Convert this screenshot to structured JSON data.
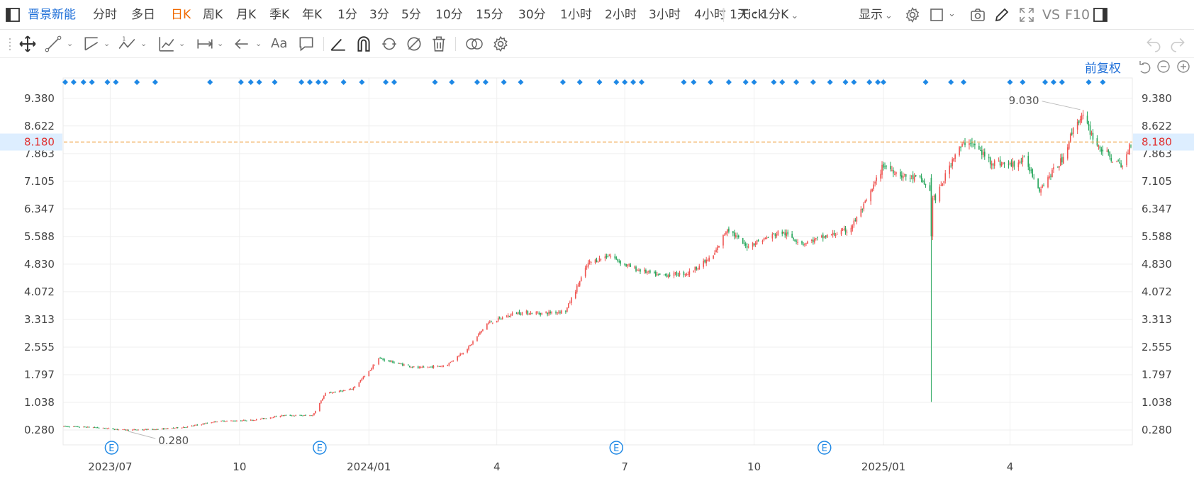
{
  "topbar": {
    "stock_name": "晋景新能",
    "periods": [
      "分时",
      "多日",
      "日K",
      "周K",
      "月K",
      "季K",
      "年K",
      "1分",
      "3分",
      "5分",
      "10分",
      "15分",
      "30分",
      "1小时",
      "2小时",
      "3小时",
      "4小时",
      "Tick"
    ],
    "active_period": "日K",
    "multi_period_label": "1天 : 1分K",
    "display_label": "显示",
    "vs_label": "VS",
    "f10_label": "F10"
  },
  "drawbar": {
    "text_tool_label": "Aa"
  },
  "chart_data": {
    "type": "candlestick",
    "title": "",
    "y_ticks": [
      0.28,
      1.038,
      1.797,
      2.555,
      3.313,
      4.072,
      4.83,
      5.588,
      6.347,
      7.105,
      7.863,
      8.622,
      9.38
    ],
    "y_tick_labels": [
      "0.280",
      "1.038",
      "1.797",
      "2.555",
      "3.313",
      "4.072",
      "4.830",
      "5.588",
      "6.347",
      "7.105",
      "7.863",
      "8.622",
      "9.380"
    ],
    "ylim": [
      -0.05,
      9.72
    ],
    "x_labels": [
      "2023/07",
      "10",
      "2024/01",
      "4",
      "7",
      "10",
      "2025/01",
      "4"
    ],
    "x_label_dates": [
      "2023-07-01",
      "2023-10-01",
      "2024-01-01",
      "2024-04-01",
      "2024-07-01",
      "2024-10-01",
      "2025-01-01",
      "2025-04-01"
    ],
    "date_range": [
      "2023-05-29",
      "2025-06-26"
    ],
    "last_price": 8.18,
    "last_price_label": "8.180",
    "adjust_label": "前复权",
    "max_annotation": {
      "value": 9.03,
      "label": "9.030",
      "date": "2025-05-23"
    },
    "min_annotation": {
      "value": 0.28,
      "label": "0.280",
      "date": "2023-07-12"
    },
    "event_markers": {
      "label": "E",
      "dates": [
        "2023-07-02",
        "2023-11-27",
        "2024-06-25",
        "2024-11-20"
      ]
    },
    "signal_dates": [
      "2023-05-30",
      "2023-06-05",
      "2023-06-12",
      "2023-06-18",
      "2023-06-29",
      "2023-07-05",
      "2023-07-20",
      "2023-08-02",
      "2023-09-10",
      "2023-10-02",
      "2023-10-09",
      "2023-10-15",
      "2023-10-26",
      "2023-11-14",
      "2023-11-20",
      "2023-11-26",
      "2023-12-01",
      "2023-12-14",
      "2023-12-27",
      "2024-01-13",
      "2024-01-19",
      "2024-02-17",
      "2024-02-29",
      "2024-03-18",
      "2024-03-24",
      "2024-04-06",
      "2024-04-18",
      "2024-05-18",
      "2024-05-30",
      "2024-06-13",
      "2024-06-25",
      "2024-07-01",
      "2024-07-07",
      "2024-07-13",
      "2024-08-12",
      "2024-08-19",
      "2024-08-31",
      "2024-09-13",
      "2024-09-25",
      "2024-10-01",
      "2024-10-15",
      "2024-10-21",
      "2024-10-31",
      "2024-11-12",
      "2024-11-24",
      "2024-12-05",
      "2024-12-11",
      "2024-12-22",
      "2024-12-28",
      "2025-01-01",
      "2025-01-31",
      "2025-02-18",
      "2025-02-27",
      "2025-04-01",
      "2025-04-10",
      "2025-04-26",
      "2025-05-02",
      "2025-05-08",
      "2025-05-27",
      "2025-06-06"
    ],
    "anchors": [
      [
        "2023-05-29",
        0.38
      ],
      [
        "2023-06-20",
        0.35
      ],
      [
        "2023-07-12",
        0.28
      ],
      [
        "2023-08-05",
        0.3
      ],
      [
        "2023-08-25",
        0.37
      ],
      [
        "2023-09-15",
        0.52
      ],
      [
        "2023-10-10",
        0.55
      ],
      [
        "2023-11-01",
        0.68
      ],
      [
        "2023-11-22",
        0.68
      ],
      [
        "2023-12-01",
        1.28
      ],
      [
        "2023-12-20",
        1.4
      ],
      [
        "2024-01-01",
        1.88
      ],
      [
        "2024-01-08",
        2.25
      ],
      [
        "2024-01-20",
        2.12
      ],
      [
        "2024-02-05",
        1.98
      ],
      [
        "2024-02-25",
        2.05
      ],
      [
        "2024-03-12",
        2.55
      ],
      [
        "2024-03-25",
        3.2
      ],
      [
        "2024-04-15",
        3.5
      ],
      [
        "2024-05-05",
        3.48
      ],
      [
        "2024-05-20",
        3.55
      ],
      [
        "2024-06-05",
        4.85
      ],
      [
        "2024-06-20",
        5.08
      ],
      [
        "2024-07-01",
        4.82
      ],
      [
        "2024-07-10",
        4.68
      ],
      [
        "2024-07-25",
        4.52
      ],
      [
        "2024-08-15",
        4.58
      ],
      [
        "2024-09-02",
        5.05
      ],
      [
        "2024-09-12",
        5.82
      ],
      [
        "2024-09-25",
        5.32
      ],
      [
        "2024-10-10",
        5.55
      ],
      [
        "2024-10-20",
        5.72
      ],
      [
        "2024-11-05",
        5.4
      ],
      [
        "2024-11-22",
        5.6
      ],
      [
        "2024-12-08",
        5.78
      ],
      [
        "2024-12-20",
        6.55
      ],
      [
        "2025-01-01",
        7.55
      ],
      [
        "2025-01-15",
        7.25
      ],
      [
        "2025-01-28",
        7.15
      ],
      [
        "2025-02-07",
        6.6
      ],
      [
        "2025-02-20",
        7.8
      ],
      [
        "2025-03-02",
        8.25
      ],
      [
        "2025-03-18",
        7.65
      ],
      [
        "2025-04-01",
        7.55
      ],
      [
        "2025-04-12",
        7.7
      ],
      [
        "2025-04-22",
        6.9
      ],
      [
        "2025-05-08",
        7.7
      ],
      [
        "2025-05-18",
        8.75
      ],
      [
        "2025-05-23",
        8.85
      ],
      [
        "2025-06-02",
        8.1
      ],
      [
        "2025-06-13",
        7.7
      ],
      [
        "2025-06-20",
        7.5
      ],
      [
        "2025-06-26",
        8.18
      ]
    ],
    "spikes": [
      {
        "date": "2025-02-04",
        "open": 7.2,
        "high": 7.3,
        "low": 1.05,
        "close": 5.6
      }
    ]
  }
}
